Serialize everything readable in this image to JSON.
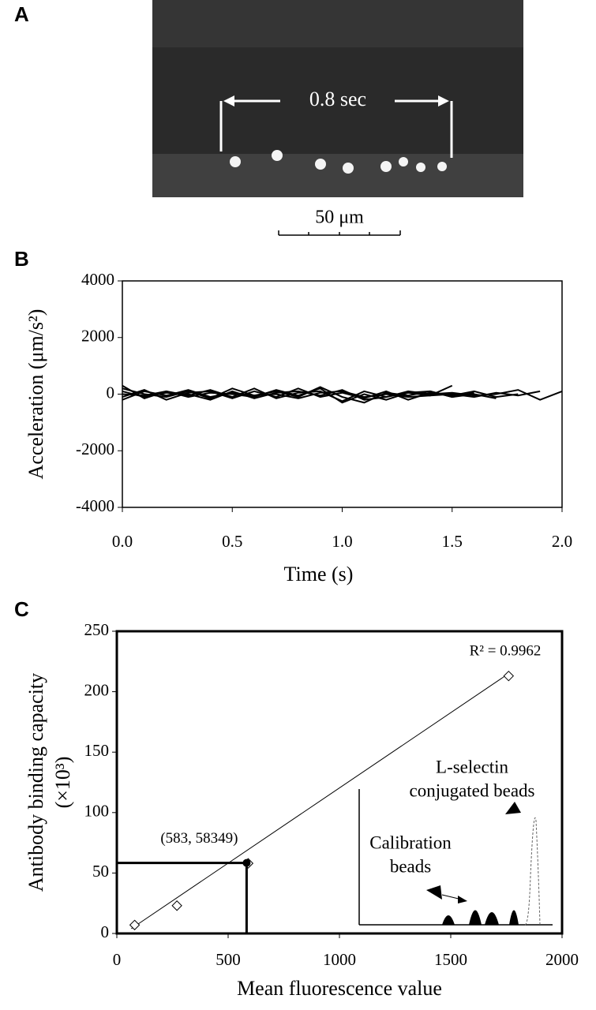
{
  "panel_a": {
    "label": "A",
    "interval": "0.8 sec",
    "scale_bar": "50 μm"
  },
  "chart_data": [
    {
      "type": "line",
      "panel_label": "B",
      "y_label": "Acceleration (μm/s²)",
      "x_label": "Time (s)",
      "x": [
        0,
        0.1,
        0.2,
        0.3,
        0.4,
        0.5,
        0.6,
        0.7,
        0.8,
        0.9,
        1,
        1.1,
        1.2,
        1.3,
        1.4,
        1.5,
        1.6,
        1.7,
        1.8,
        1.9,
        2
      ],
      "xlim": [
        0,
        2
      ],
      "xticks": [
        {
          "value": 0,
          "label": "0.0"
        },
        0.5,
        {
          "value": 1,
          "label": "1.0"
        },
        1.5,
        {
          "value": 2,
          "label": "2.0"
        }
      ],
      "ylim": [
        -4000,
        4000
      ],
      "yticks": [
        4000,
        2000,
        0,
        -2000,
        -4000
      ],
      "series": [
        {
          "color": "#000000",
          "values": [
            300,
            -150,
            100,
            -50,
            150,
            -100,
            200,
            -150,
            50,
            100,
            -250,
            100,
            -100,
            50,
            -50,
            300,
            null,
            null,
            null,
            null,
            null
          ]
        },
        {
          "color": "#000000",
          "values": [
            -200,
            100,
            -50,
            150,
            -100,
            50,
            -50,
            100,
            -100,
            250,
            -100,
            -300,
            50,
            -50,
            100,
            -100,
            0,
            -150,
            null,
            null,
            null
          ]
        },
        {
          "color": "#000000",
          "values": [
            100,
            -100,
            50,
            0,
            -200,
            100,
            -150,
            50,
            100,
            -50,
            150,
            -200,
            -100,
            100,
            0,
            50,
            -50,
            0,
            150,
            -200,
            100
          ]
        },
        {
          "color": "#000000",
          "values": [
            -100,
            150,
            -200,
            50,
            100,
            -150,
            100,
            -100,
            200,
            -100,
            50,
            -150,
            100,
            -200,
            50,
            -50,
            100,
            -100,
            0,
            null,
            null
          ]
        },
        {
          "color": "#000000",
          "values": [
            0,
            -50,
            100,
            -100,
            50,
            0,
            -100,
            150,
            -50,
            200,
            -300,
            0,
            -200,
            50,
            100,
            -100,
            50,
            null,
            null,
            null,
            null
          ]
        },
        {
          "color": "#000000",
          "values": [
            200,
            0,
            -100,
            100,
            -150,
            200,
            -50,
            0,
            -150,
            50,
            100,
            -100,
            0,
            -100,
            -50,
            0,
            -100,
            50,
            -50,
            100,
            null
          ]
        }
      ]
    },
    {
      "type": "scatter",
      "panel_label": "C",
      "y_label": [
        "Antibody binding capacity",
        "(×10³)"
      ],
      "x_label": "Mean fluorescence value",
      "xlim": [
        0,
        2000
      ],
      "xticks": [
        0,
        500,
        1000,
        1500,
        2000
      ],
      "ylim": [
        0,
        250
      ],
      "yticks": [
        0,
        50,
        100,
        150,
        200,
        250
      ],
      "series": [
        {
          "color": "#000000",
          "x": [
            80,
            270,
            590,
            1760
          ],
          "values": [
            7,
            23,
            58,
            213
          ]
        }
      ],
      "trend_line": {
        "x": [
          65,
          1760
        ],
        "values": [
          4,
          215
        ],
        "label": "R² = 0.9962"
      },
      "highlight": {
        "x": 583,
        "value": 58.349,
        "label": "(583, 58349)"
      },
      "inset_annotations": [
        [
          "L-selectin",
          "conjugated beads"
        ],
        [
          "Calibration",
          "beads"
        ]
      ]
    }
  ]
}
